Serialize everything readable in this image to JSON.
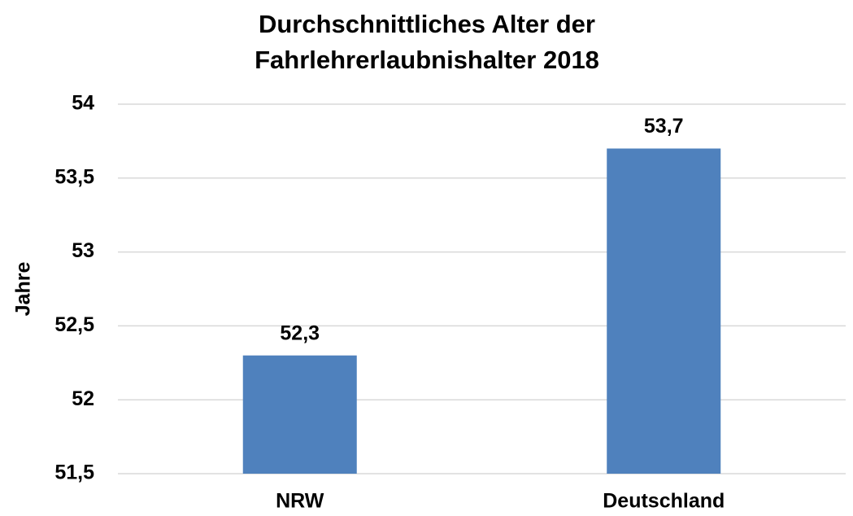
{
  "chart_data": {
    "type": "bar",
    "title": "Durchschnittliches Alter der Fahrlehrerlaubnishalter 2018",
    "y_label": "Jahre",
    "categories": [
      "NRW",
      "Deutschland"
    ],
    "values": [
      52.3,
      53.7
    ],
    "value_labels": [
      "52,3",
      "53,7"
    ],
    "color": "#4f81bd",
    "ylim": [
      51.5,
      54
    ],
    "yticks": [
      {
        "value": 51.5,
        "label": "51,5"
      },
      52,
      {
        "value": 52.5,
        "label": "52,5"
      },
      53,
      {
        "value": 53.5,
        "label": "53,5"
      },
      54
    ],
    "grid": true
  }
}
